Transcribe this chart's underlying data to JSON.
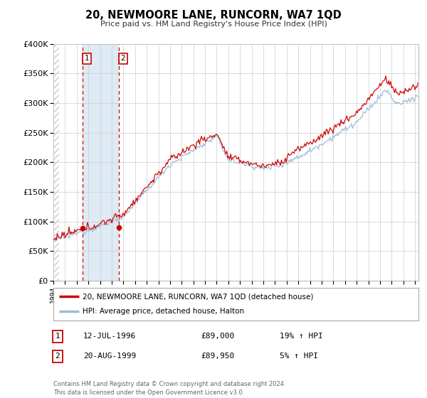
{
  "title": "20, NEWMOORE LANE, RUNCORN, WA7 1QD",
  "subtitle": "Price paid vs. HM Land Registry's House Price Index (HPI)",
  "legend_line1": "20, NEWMOORE LANE, RUNCORN, WA7 1QD (detached house)",
  "legend_line2": "HPI: Average price, detached house, Halton",
  "sale1_label": "1",
  "sale1_date": "12-JUL-1996",
  "sale1_price": "£89,000",
  "sale1_hpi": "19% ↑ HPI",
  "sale1_year": 1996.53,
  "sale1_value": 89000,
  "sale2_label": "2",
  "sale2_date": "20-AUG-1999",
  "sale2_price": "£89,950",
  "sale2_hpi": "5% ↑ HPI",
  "sale2_year": 1999.63,
  "sale2_value": 89950,
  "red_line_color": "#cc0000",
  "blue_line_color": "#9bbcd8",
  "shade_color": "#deeaf4",
  "dashed_color": "#cc0000",
  "hatch_color": "#cccccc",
  "footer_text": "Contains HM Land Registry data © Crown copyright and database right 2024.\nThis data is licensed under the Open Government Licence v3.0.",
  "ylim": [
    0,
    400000
  ],
  "xlim_start": 1994.0,
  "xlim_end": 2025.3
}
